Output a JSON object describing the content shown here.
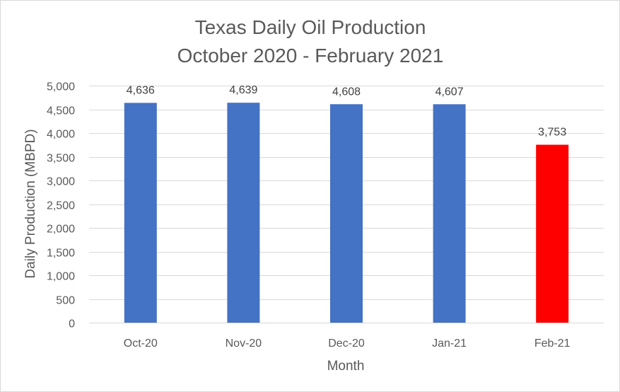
{
  "chart_data": {
    "type": "bar",
    "title": "Texas Daily Oil Production",
    "subtitle": "October 2020 - February 2021",
    "xlabel": "Month",
    "ylabel": "Daily Production (MBPD)",
    "categories": [
      "Oct-20",
      "Nov-20",
      "Dec-20",
      "Jan-21",
      "Feb-21"
    ],
    "values": [
      4636,
      4639,
      4608,
      4607,
      3753
    ],
    "data_labels": [
      "4,636",
      "4,639",
      "4,608",
      "4,607",
      "3,753"
    ],
    "bar_colors": [
      "#4472C4",
      "#4472C4",
      "#4472C4",
      "#4472C4",
      "#FF0000"
    ],
    "ylim": [
      0,
      5000
    ],
    "y_ticks": [
      0,
      500,
      1000,
      1500,
      2000,
      2500,
      3000,
      3500,
      4000,
      4500,
      5000
    ],
    "y_tick_labels": [
      "0",
      "500",
      "1,000",
      "1,500",
      "2,000",
      "2,500",
      "3,000",
      "3,500",
      "4,000",
      "4,500",
      "5,000"
    ],
    "grid": true,
    "legend": "none"
  }
}
